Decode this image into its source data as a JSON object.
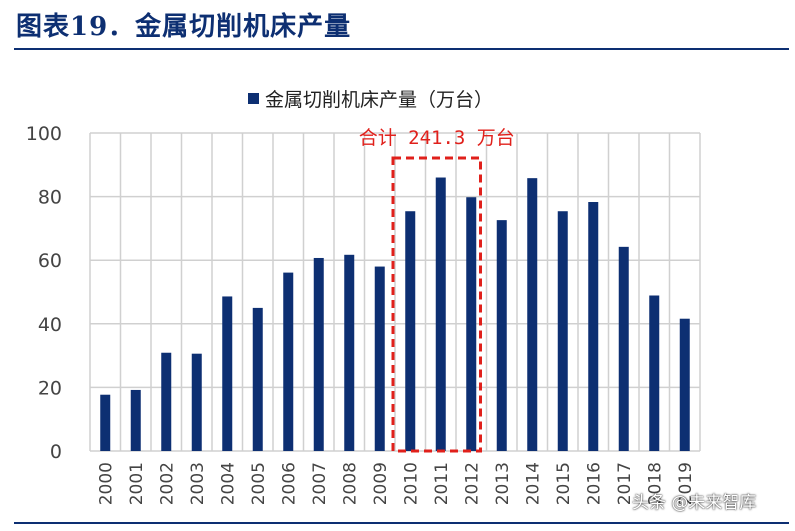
{
  "header": {
    "figure_title": "图表19．金属切削机床产量"
  },
  "watermark": "头条 @未来智库",
  "colors": {
    "bar": "#0d2f72",
    "annotation": "#e0201b",
    "grid": "#d0d0d0"
  },
  "chart_data": {
    "type": "bar",
    "title": "",
    "legend": "金属切削机床产量（万台）",
    "legend_position": "top-center",
    "categories": [
      "2000",
      "2001",
      "2002",
      "2003",
      "2004",
      "2005",
      "2006",
      "2007",
      "2008",
      "2009",
      "2010",
      "2011",
      "2012",
      "2013",
      "2014",
      "2015",
      "2016",
      "2017",
      "2018",
      "2019"
    ],
    "values": [
      17.7,
      19.2,
      30.9,
      30.6,
      48.6,
      45.0,
      56.1,
      60.7,
      61.7,
      58.0,
      75.4,
      86.0,
      79.8,
      72.6,
      85.8,
      75.4,
      78.3,
      64.2,
      48.9,
      41.6
    ],
    "ylim": [
      0,
      100
    ],
    "yticks": [
      0,
      20,
      40,
      60,
      80,
      100
    ],
    "xlabel": "",
    "ylabel": "",
    "grid": true,
    "annotation": {
      "text": "合计 241.3 万台",
      "from_category": "2010",
      "to_category": "2012"
    }
  }
}
